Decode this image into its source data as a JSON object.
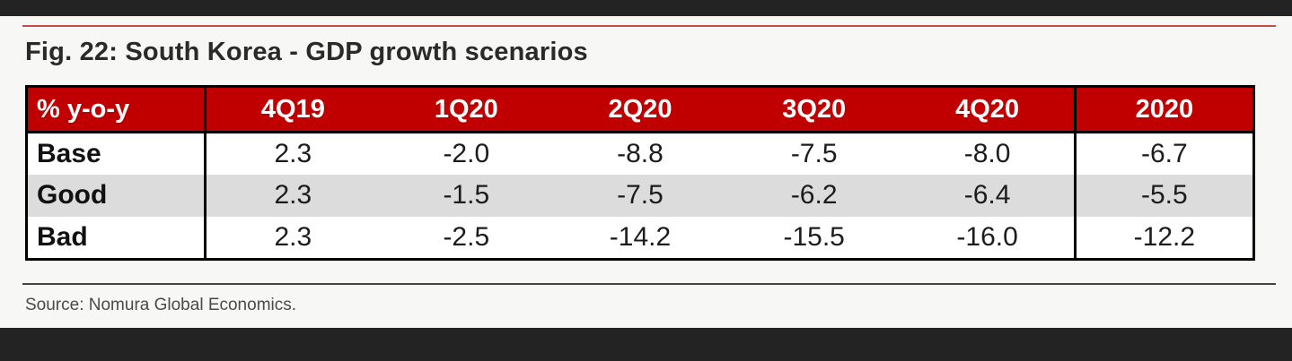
{
  "title": "Fig. 22: South Korea - GDP growth scenarios",
  "source": "Source: Nomura Global Economics.",
  "chart_data": {
    "type": "table",
    "title": "Fig. 22: South Korea - GDP growth scenarios",
    "header": [
      "% y-o-y",
      "4Q19",
      "1Q20",
      "2Q20",
      "3Q20",
      "4Q20",
      "2020"
    ],
    "rows": [
      {
        "label": "Base",
        "values": [
          "2.3",
          "-2.0",
          "-8.8",
          "-7.5",
          "-8.0",
          "-6.7"
        ]
      },
      {
        "label": "Good",
        "values": [
          "2.3",
          "-1.5",
          "-7.5",
          "-6.2",
          "-6.4",
          "-5.5"
        ]
      },
      {
        "label": "Bad",
        "values": [
          "2.3",
          "-2.5",
          "-14.2",
          "-15.5",
          "-16.0",
          "-12.2"
        ]
      }
    ]
  },
  "colors": {
    "header_bg": "#c00000",
    "header_text": "#ffffff",
    "shade_row": "#dcdcdc",
    "accent_rule": "#c94a4a"
  }
}
